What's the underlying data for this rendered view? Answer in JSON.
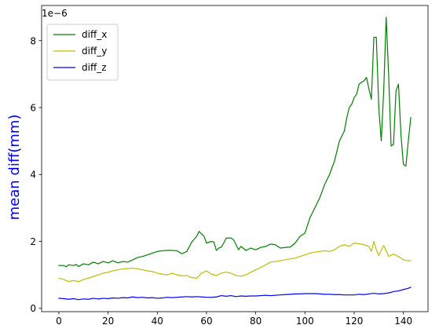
{
  "chart_data": {
    "type": "line",
    "ylabel": "mean diff(mm)",
    "ylabel_color": "#0000ff",
    "offset_text": "1e−6",
    "xlim": [
      -7,
      150
    ],
    "ylim": [
      -0.1,
      9.05
    ],
    "x_ticks": [
      0,
      20,
      40,
      60,
      80,
      100,
      120,
      140
    ],
    "y_ticks": [
      0,
      2,
      4,
      6,
      8
    ],
    "x_tick_labels": [
      "0",
      "20",
      "40",
      "60",
      "80",
      "100",
      "120",
      "140"
    ],
    "y_tick_labels": [
      "0",
      "2",
      "4",
      "6",
      "8"
    ],
    "legend_position": "upper-left",
    "grid": false,
    "series": [
      {
        "name": "diff_x",
        "color": "#008000",
        "points": [
          [
            0,
            1.28
          ],
          [
            2,
            1.28
          ],
          [
            3,
            1.24
          ],
          [
            4,
            1.3
          ],
          [
            6,
            1.28
          ],
          [
            7,
            1.31
          ],
          [
            8,
            1.25
          ],
          [
            10,
            1.33
          ],
          [
            12,
            1.3
          ],
          [
            14,
            1.38
          ],
          [
            16,
            1.33
          ],
          [
            18,
            1.4
          ],
          [
            20,
            1.36
          ],
          [
            22,
            1.42
          ],
          [
            24,
            1.36
          ],
          [
            26,
            1.4
          ],
          [
            28,
            1.38
          ],
          [
            30,
            1.45
          ],
          [
            32,
            1.52
          ],
          [
            34,
            1.55
          ],
          [
            36,
            1.6
          ],
          [
            38,
            1.65
          ],
          [
            40,
            1.7
          ],
          [
            42,
            1.72
          ],
          [
            44,
            1.73
          ],
          [
            46,
            1.73
          ],
          [
            48,
            1.72
          ],
          [
            50,
            1.63
          ],
          [
            52,
            1.7
          ],
          [
            54,
            1.98
          ],
          [
            56,
            2.15
          ],
          [
            57,
            2.3
          ],
          [
            58,
            2.22
          ],
          [
            59,
            2.15
          ],
          [
            60,
            1.95
          ],
          [
            62,
            2.0
          ],
          [
            63,
            1.98
          ],
          [
            64,
            1.73
          ],
          [
            65,
            1.8
          ],
          [
            66,
            1.83
          ],
          [
            67,
            1.95
          ],
          [
            68,
            2.1
          ],
          [
            70,
            2.1
          ],
          [
            71,
            2.05
          ],
          [
            72,
            1.9
          ],
          [
            73,
            1.75
          ],
          [
            74,
            1.85
          ],
          [
            76,
            1.73
          ],
          [
            78,
            1.8
          ],
          [
            80,
            1.75
          ],
          [
            82,
            1.82
          ],
          [
            84,
            1.85
          ],
          [
            86,
            1.92
          ],
          [
            88,
            1.9
          ],
          [
            90,
            1.8
          ],
          [
            92,
            1.82
          ],
          [
            94,
            1.83
          ],
          [
            96,
            1.95
          ],
          [
            98,
            2.15
          ],
          [
            100,
            2.25
          ],
          [
            102,
            2.7
          ],
          [
            104,
            3.0
          ],
          [
            106,
            3.3
          ],
          [
            108,
            3.7
          ],
          [
            110,
            4.0
          ],
          [
            112,
            4.4
          ],
          [
            114,
            5.0
          ],
          [
            116,
            5.3
          ],
          [
            117,
            5.7
          ],
          [
            118,
            6.0
          ],
          [
            119,
            6.1
          ],
          [
            120,
            6.3
          ],
          [
            121,
            6.4
          ],
          [
            122,
            6.7
          ],
          [
            123,
            6.75
          ],
          [
            124,
            6.8
          ],
          [
            125,
            6.9
          ],
          [
            126,
            6.55
          ],
          [
            127,
            6.25
          ],
          [
            128,
            8.1
          ],
          [
            129,
            8.1
          ],
          [
            130,
            6.0
          ],
          [
            131,
            5.0
          ],
          [
            132,
            6.5
          ],
          [
            133,
            8.7
          ],
          [
            134,
            7.0
          ],
          [
            135,
            4.85
          ],
          [
            136,
            4.9
          ],
          [
            137,
            6.5
          ],
          [
            138,
            6.7
          ],
          [
            139,
            5.2
          ],
          [
            140,
            4.3
          ],
          [
            141,
            4.25
          ],
          [
            142,
            5.0
          ],
          [
            143,
            5.7
          ]
        ]
      },
      {
        "name": "diff_y",
        "color": "#bfbf00",
        "points": [
          [
            0,
            0.9
          ],
          [
            2,
            0.86
          ],
          [
            4,
            0.8
          ],
          [
            6,
            0.83
          ],
          [
            8,
            0.8
          ],
          [
            10,
            0.86
          ],
          [
            12,
            0.9
          ],
          [
            14,
            0.95
          ],
          [
            16,
            1.0
          ],
          [
            18,
            1.05
          ],
          [
            20,
            1.08
          ],
          [
            22,
            1.12
          ],
          [
            24,
            1.15
          ],
          [
            26,
            1.18
          ],
          [
            28,
            1.19
          ],
          [
            30,
            1.2
          ],
          [
            32,
            1.18
          ],
          [
            34,
            1.15
          ],
          [
            36,
            1.12
          ],
          [
            38,
            1.1
          ],
          [
            40,
            1.05
          ],
          [
            42,
            1.02
          ],
          [
            44,
            1.0
          ],
          [
            46,
            1.05
          ],
          [
            48,
            1.0
          ],
          [
            50,
            0.97
          ],
          [
            52,
            0.98
          ],
          [
            54,
            0.92
          ],
          [
            56,
            0.9
          ],
          [
            58,
            1.05
          ],
          [
            60,
            1.12
          ],
          [
            62,
            1.02
          ],
          [
            64,
            0.98
          ],
          [
            66,
            1.05
          ],
          [
            68,
            1.08
          ],
          [
            70,
            1.05
          ],
          [
            72,
            0.98
          ],
          [
            74,
            0.96
          ],
          [
            76,
            1.0
          ],
          [
            78,
            1.08
          ],
          [
            80,
            1.15
          ],
          [
            82,
            1.22
          ],
          [
            84,
            1.3
          ],
          [
            86,
            1.38
          ],
          [
            88,
            1.4
          ],
          [
            90,
            1.42
          ],
          [
            92,
            1.45
          ],
          [
            94,
            1.48
          ],
          [
            96,
            1.5
          ],
          [
            98,
            1.55
          ],
          [
            100,
            1.6
          ],
          [
            102,
            1.65
          ],
          [
            104,
            1.68
          ],
          [
            106,
            1.7
          ],
          [
            108,
            1.72
          ],
          [
            110,
            1.7
          ],
          [
            112,
            1.75
          ],
          [
            114,
            1.85
          ],
          [
            116,
            1.9
          ],
          [
            118,
            1.85
          ],
          [
            120,
            1.95
          ],
          [
            122,
            1.93
          ],
          [
            124,
            1.9
          ],
          [
            126,
            1.85
          ],
          [
            127,
            1.7
          ],
          [
            128,
            2.0
          ],
          [
            129,
            1.75
          ],
          [
            130,
            1.58
          ],
          [
            132,
            1.88
          ],
          [
            134,
            1.55
          ],
          [
            136,
            1.62
          ],
          [
            138,
            1.55
          ],
          [
            140,
            1.45
          ],
          [
            142,
            1.42
          ],
          [
            143,
            1.43
          ]
        ]
      },
      {
        "name": "diff_z",
        "color": "#0000ff",
        "points": [
          [
            0,
            0.3
          ],
          [
            2,
            0.29
          ],
          [
            4,
            0.27
          ],
          [
            6,
            0.29
          ],
          [
            8,
            0.26
          ],
          [
            10,
            0.28
          ],
          [
            12,
            0.27
          ],
          [
            14,
            0.3
          ],
          [
            16,
            0.28
          ],
          [
            18,
            0.3
          ],
          [
            20,
            0.29
          ],
          [
            22,
            0.31
          ],
          [
            24,
            0.3
          ],
          [
            26,
            0.32
          ],
          [
            28,
            0.31
          ],
          [
            30,
            0.34
          ],
          [
            32,
            0.32
          ],
          [
            34,
            0.33
          ],
          [
            36,
            0.31
          ],
          [
            38,
            0.32
          ],
          [
            40,
            0.3
          ],
          [
            42,
            0.31
          ],
          [
            44,
            0.33
          ],
          [
            46,
            0.32
          ],
          [
            48,
            0.33
          ],
          [
            50,
            0.34
          ],
          [
            52,
            0.35
          ],
          [
            54,
            0.34
          ],
          [
            56,
            0.35
          ],
          [
            58,
            0.34
          ],
          [
            60,
            0.33
          ],
          [
            62,
            0.33
          ],
          [
            64,
            0.34
          ],
          [
            66,
            0.38
          ],
          [
            68,
            0.36
          ],
          [
            70,
            0.38
          ],
          [
            72,
            0.35
          ],
          [
            74,
            0.37
          ],
          [
            76,
            0.36
          ],
          [
            78,
            0.37
          ],
          [
            80,
            0.37
          ],
          [
            82,
            0.38
          ],
          [
            84,
            0.39
          ],
          [
            86,
            0.38
          ],
          [
            88,
            0.39
          ],
          [
            90,
            0.4
          ],
          [
            92,
            0.41
          ],
          [
            94,
            0.42
          ],
          [
            96,
            0.43
          ],
          [
            98,
            0.43
          ],
          [
            100,
            0.44
          ],
          [
            102,
            0.44
          ],
          [
            104,
            0.44
          ],
          [
            106,
            0.43
          ],
          [
            108,
            0.42
          ],
          [
            110,
            0.42
          ],
          [
            112,
            0.41
          ],
          [
            114,
            0.41
          ],
          [
            116,
            0.4
          ],
          [
            118,
            0.4
          ],
          [
            120,
            0.4
          ],
          [
            122,
            0.42
          ],
          [
            124,
            0.41
          ],
          [
            126,
            0.43
          ],
          [
            128,
            0.45
          ],
          [
            130,
            0.43
          ],
          [
            132,
            0.44
          ],
          [
            134,
            0.46
          ],
          [
            136,
            0.5
          ],
          [
            138,
            0.52
          ],
          [
            140,
            0.56
          ],
          [
            142,
            0.6
          ],
          [
            143,
            0.63
          ]
        ]
      }
    ]
  }
}
